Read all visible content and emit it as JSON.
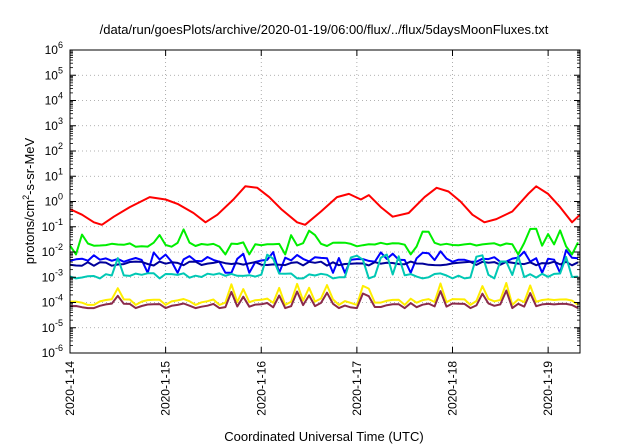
{
  "chart_data": {
    "type": "line",
    "title": "/data/run/goesPlots/archive/2020-01-19/06:00/flux/../flux/5daysMoonFluxes.txt",
    "xlabel": "Coordinated Universal Time (UTC)",
    "ylabel_parts": [
      "protons/cm",
      "2",
      "-s-sr-MeV"
    ],
    "y_scale": "log",
    "ylim": [
      1e-06,
      1000000.0
    ],
    "y_ticks": [
      {
        "base": "10",
        "exp": "-6",
        "value": 1e-06
      },
      {
        "base": "10",
        "exp": "-5",
        "value": 1e-05
      },
      {
        "base": "10",
        "exp": "-4",
        "value": 0.0001
      },
      {
        "base": "10",
        "exp": "-3",
        "value": 0.001
      },
      {
        "base": "10",
        "exp": "-2",
        "value": 0.01
      },
      {
        "base": "10",
        "exp": "-1",
        "value": 0.1
      },
      {
        "base": "10",
        "exp": "0",
        "value": 1
      },
      {
        "base": "10",
        "exp": "1",
        "value": 10
      },
      {
        "base": "10",
        "exp": "2",
        "value": 100
      },
      {
        "base": "10",
        "exp": "3",
        "value": 1000
      },
      {
        "base": "10",
        "exp": "4",
        "value": 10000
      },
      {
        "base": "10",
        "exp": "5",
        "value": 100000
      },
      {
        "base": "10",
        "exp": "6",
        "value": 1000000
      }
    ],
    "xlim": [
      "2020-01-14T00:00",
      "2020-01-19T08:00"
    ],
    "x_ticks": [
      {
        "label": "2020-1-14",
        "value": "2020-01-14T00:00"
      },
      {
        "label": "2020-1-15",
        "value": "2020-01-15T00:00"
      },
      {
        "label": "2020-1-16",
        "value": "2020-01-16T00:00"
      },
      {
        "label": "2020-1-17",
        "value": "2020-01-17T00:00"
      },
      {
        "label": "2020-1-18",
        "value": "2020-01-18T00:00"
      },
      {
        "label": "2020-1-19",
        "value": "2020-01-19T00:00"
      }
    ],
    "grid": true,
    "series": [
      {
        "color": "#ff0000",
        "kind": "smooth",
        "points": [
          [
            "2020-01-14T00:00",
            0.5
          ],
          [
            "2020-01-14T03:00",
            0.3
          ],
          [
            "2020-01-14T06:00",
            0.15
          ],
          [
            "2020-01-14T08:00",
            0.12
          ],
          [
            "2020-01-14T11:00",
            0.25
          ],
          [
            "2020-01-14T15:00",
            0.6
          ],
          [
            "2020-01-14T20:00",
            1.5
          ],
          [
            "2020-01-15T00:00",
            1.2
          ],
          [
            "2020-01-15T03:00",
            0.8
          ],
          [
            "2020-01-15T07:00",
            0.35
          ],
          [
            "2020-01-15T10:00",
            0.15
          ],
          [
            "2020-01-15T13:00",
            0.3
          ],
          [
            "2020-01-15T17:00",
            1.2
          ],
          [
            "2020-01-15T20:00",
            4.0
          ],
          [
            "2020-01-15T23:00",
            3.5
          ],
          [
            "2020-01-16T02:00",
            1.5
          ],
          [
            "2020-01-16T05:00",
            0.5
          ],
          [
            "2020-01-16T09:00",
            0.15
          ],
          [
            "2020-01-16T11:00",
            0.12
          ],
          [
            "2020-01-16T15:00",
            0.4
          ],
          [
            "2020-01-16T19:00",
            1.5
          ],
          [
            "2020-01-16T22:00",
            2.0
          ],
          [
            "2020-01-17T01:00",
            1.2
          ],
          [
            "2020-01-17T03:00",
            1.8
          ],
          [
            "2020-01-17T06:00",
            0.6
          ],
          [
            "2020-01-17T09:00",
            0.25
          ],
          [
            "2020-01-17T13:00",
            0.35
          ],
          [
            "2020-01-17T17:00",
            1.5
          ],
          [
            "2020-01-17T20:00",
            3.5
          ],
          [
            "2020-01-17T23:00",
            2.5
          ],
          [
            "2020-01-18T02:00",
            1.0
          ],
          [
            "2020-01-18T05:00",
            0.3
          ],
          [
            "2020-01-18T08:00",
            0.15
          ],
          [
            "2020-01-18T11:00",
            0.2
          ],
          [
            "2020-01-18T15:00",
            0.4
          ],
          [
            "2020-01-18T19:00",
            2.0
          ],
          [
            "2020-01-18T21:00",
            4.0
          ],
          [
            "2020-01-19T00:00",
            2.0
          ],
          [
            "2020-01-19T03:00",
            0.6
          ],
          [
            "2020-01-19T06:00",
            0.15
          ],
          [
            "2020-01-19T08:00",
            0.3
          ]
        ]
      },
      {
        "color": "#00ee00",
        "kind": "spiky",
        "base": 0.02,
        "spike": 0.09,
        "dip": 0.008,
        "seed": 11
      },
      {
        "color": "#0000ff",
        "kind": "spiky",
        "base": 0.005,
        "spike": 0.012,
        "dip": 0.0015,
        "seed": 23
      },
      {
        "color": "#000099",
        "kind": "flat",
        "base": 0.0035,
        "seed": 31
      },
      {
        "color": "#00c8b4",
        "kind": "spiky",
        "base": 0.0012,
        "spike": 0.008,
        "dip": 0.0009,
        "seed": 37
      },
      {
        "color": "#ffee00",
        "kind": "spiky",
        "base": 0.00012,
        "spike": 0.0006,
        "dip": 8e-05,
        "seed": 43
      },
      {
        "color": "#8b2a4a",
        "kind": "spiky",
        "base": 8e-05,
        "spike": 0.0003,
        "dip": 6e-05,
        "seed": 43
      }
    ]
  }
}
